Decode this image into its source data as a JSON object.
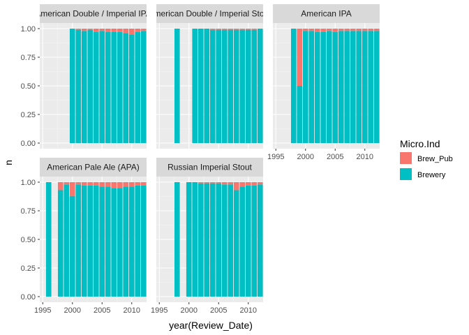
{
  "chart_data": {
    "type": "bar",
    "stacked": true,
    "normalized": true,
    "xlabel": "year(Review_Date)",
    "ylabel": "n",
    "ylim": [
      0,
      1
    ],
    "y_ticks": [
      "0.00",
      "0.25",
      "0.50",
      "0.75",
      "1.00"
    ],
    "y_tick_values": [
      0,
      0.25,
      0.5,
      0.75,
      1
    ],
    "xlim": [
      1994.5,
      2012.5
    ],
    "x_ticks": [
      "1995",
      "2000",
      "2005",
      "2010"
    ],
    "x_tick_values": [
      1995,
      2000,
      2005,
      2010
    ],
    "grid": true,
    "legend": {
      "title": "Micro.Ind",
      "position": "right",
      "entries": [
        {
          "name": "Brew_Pub",
          "color": "#F8766D"
        },
        {
          "name": "Brewery",
          "color": "#00BFC4"
        }
      ]
    },
    "panels": [
      {
        "title": "American Double / Imperial IPA",
        "years": [
          2000,
          2001,
          2002,
          2003,
          2004,
          2005,
          2006,
          2007,
          2008,
          2009,
          2010,
          2011,
          2012
        ],
        "brew_pub": [
          0.0,
          0.01,
          0.02,
          0.01,
          0.03,
          0.02,
          0.03,
          0.03,
          0.03,
          0.04,
          0.05,
          0.03,
          0.02
        ],
        "brewery": [
          1.0,
          0.99,
          0.98,
          0.99,
          0.97,
          0.98,
          0.97,
          0.97,
          0.97,
          0.96,
          0.95,
          0.97,
          0.98
        ]
      },
      {
        "title": "American Double / Imperial Stout",
        "years": [
          1998,
          2001,
          2002,
          2003,
          2004,
          2005,
          2006,
          2007,
          2008,
          2009,
          2010,
          2011,
          2012
        ],
        "brew_pub": [
          0.0,
          0.0,
          0.0,
          0.0,
          0.01,
          0.01,
          0.01,
          0.01,
          0.01,
          0.01,
          0.01,
          0.01,
          0.0
        ],
        "brewery": [
          1.0,
          1.0,
          1.0,
          1.0,
          0.99,
          0.99,
          0.99,
          0.99,
          0.99,
          0.99,
          0.99,
          0.99,
          1.0
        ]
      },
      {
        "title": "American IPA",
        "years": [
          1998,
          1999,
          2000,
          2001,
          2002,
          2003,
          2004,
          2005,
          2006,
          2007,
          2008,
          2009,
          2010,
          2011,
          2012
        ],
        "brew_pub": [
          0.0,
          0.5,
          0.02,
          0.02,
          0.03,
          0.03,
          0.02,
          0.03,
          0.02,
          0.02,
          0.02,
          0.02,
          0.02,
          0.02,
          0.02
        ],
        "brewery": [
          1.0,
          0.5,
          0.98,
          0.98,
          0.97,
          0.97,
          0.98,
          0.97,
          0.98,
          0.98,
          0.98,
          0.98,
          0.98,
          0.98,
          0.98
        ]
      },
      {
        "title": "American Pale Ale (APA)",
        "years": [
          1996,
          1998,
          1999,
          2000,
          2001,
          2002,
          2003,
          2004,
          2005,
          2006,
          2007,
          2008,
          2009,
          2010,
          2011,
          2012
        ],
        "brew_pub": [
          0.0,
          0.07,
          0.02,
          0.12,
          0.02,
          0.03,
          0.03,
          0.03,
          0.04,
          0.04,
          0.05,
          0.05,
          0.04,
          0.04,
          0.03,
          0.03
        ],
        "brewery": [
          1.0,
          0.93,
          0.98,
          0.88,
          0.98,
          0.97,
          0.97,
          0.97,
          0.96,
          0.96,
          0.95,
          0.95,
          0.96,
          0.96,
          0.97,
          0.97
        ]
      },
      {
        "title": "Russian Imperial Stout",
        "years": [
          1998,
          2000,
          2001,
          2002,
          2003,
          2004,
          2005,
          2006,
          2007,
          2008,
          2009,
          2010,
          2011,
          2012
        ],
        "brew_pub": [
          0.0,
          0.0,
          0.0,
          0.01,
          0.01,
          0.01,
          0.01,
          0.02,
          0.02,
          0.07,
          0.04,
          0.03,
          0.03,
          0.02
        ],
        "brewery": [
          1.0,
          1.0,
          1.0,
          0.99,
          0.99,
          0.99,
          0.99,
          0.98,
          0.98,
          0.93,
          0.96,
          0.97,
          0.97,
          0.98
        ]
      }
    ],
    "colors": {
      "panel_background": "#EBEBEB",
      "strip_background": "#D9D9D9",
      "grid": "#FFFFFF"
    }
  }
}
